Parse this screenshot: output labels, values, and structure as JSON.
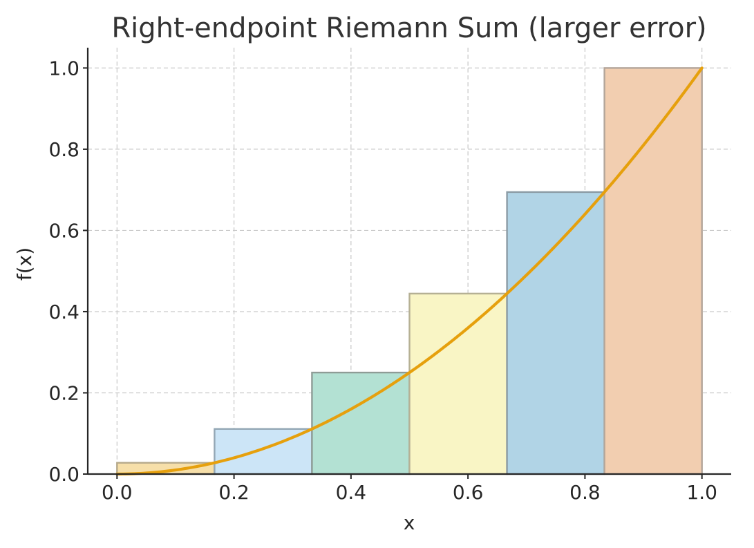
{
  "chart_data": {
    "type": "bar",
    "title": "Right-endpoint Riemann Sum (larger error)",
    "xlabel": "x",
    "ylabel": "f(x)",
    "xlim": [
      -0.05,
      1.05
    ],
    "ylim": [
      0.0,
      1.05
    ],
    "x_ticks": [
      "0.0",
      "0.2",
      "0.4",
      "0.6",
      "0.8",
      "1.0"
    ],
    "y_ticks": [
      "0.0",
      "0.2",
      "0.4",
      "0.6",
      "0.8",
      "1.0"
    ],
    "grid": true,
    "bars": [
      {
        "x_left": 0.0,
        "x_right": 0.1667,
        "height": 0.0278,
        "fill": "#f6dfa9",
        "edge": "#b5a98a"
      },
      {
        "x_left": 0.1667,
        "x_right": 0.3333,
        "height": 0.1111,
        "fill": "#cce5f7",
        "edge": "#93a7b5"
      },
      {
        "x_left": 0.3333,
        "x_right": 0.5,
        "height": 0.25,
        "fill": "#b3e1d3",
        "edge": "#8e9c96"
      },
      {
        "x_left": 0.5,
        "x_right": 0.6667,
        "height": 0.4444,
        "fill": "#f9f5c5",
        "edge": "#b5b094"
      },
      {
        "x_left": 0.6667,
        "x_right": 0.8333,
        "height": 0.6944,
        "fill": "#b1d4e6",
        "edge": "#8b9ba5"
      },
      {
        "x_left": 0.8333,
        "x_right": 1.0,
        "height": 1.0,
        "fill": "#f2ceb0",
        "edge": "#b3a59a"
      }
    ],
    "curve": {
      "function": "x^2",
      "x_range": [
        0.0,
        1.0
      ],
      "color": "#e6a00d"
    }
  }
}
